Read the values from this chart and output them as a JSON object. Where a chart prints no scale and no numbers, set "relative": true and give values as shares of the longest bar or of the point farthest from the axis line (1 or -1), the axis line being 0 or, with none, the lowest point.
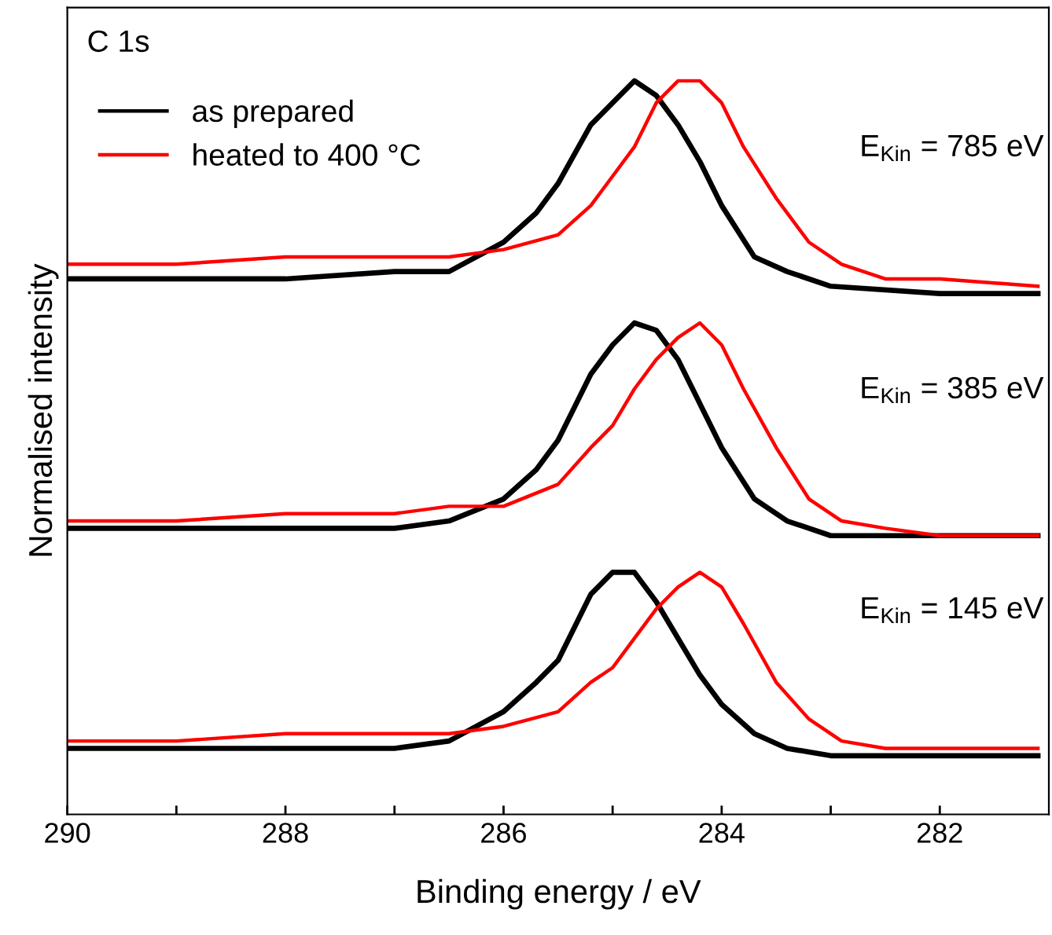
{
  "chart_data": {
    "type": "line",
    "relative": true,
    "xlabel": "Binding energy / eV",
    "ylabel": "Normalised intensity",
    "xlim": [
      290,
      281
    ],
    "xticks": [
      290,
      {
        "value": 289,
        "label": null
      },
      288,
      {
        "value": 287,
        "label": null
      },
      286,
      {
        "value": 285,
        "label": null
      },
      284,
      {
        "value": 283,
        "label": null
      },
      282
    ],
    "tick_labels": "x",
    "grid": false,
    "legend": "top left",
    "line_style": "solid",
    "marker": "none",
    "annotations": [
      "C 1s",
      "E$_{Kin}$ = 785 eV",
      "E$_{Kin}$ = 385 eV",
      "E$_{Kin}$ = 145 eV"
    ],
    "series": [
      {
        "name": "as prepared",
        "color": "#000000",
        "x": [
          290,
          289,
          288,
          287,
          286.5,
          286,
          285.7,
          285.5,
          285.2,
          285,
          284.8,
          284.6,
          284.4,
          284.2,
          284,
          283.7,
          283.4,
          283,
          282,
          281.1
        ],
        "values": [
          0.73,
          0.73,
          0.73,
          0.74,
          0.74,
          0.78,
          0.82,
          0.86,
          0.94,
          0.97,
          1.0,
          0.98,
          0.94,
          0.89,
          0.83,
          0.76,
          0.74,
          0.72,
          0.71,
          0.71
        ]
      },
      {
        "name": "heated to 400 °C",
        "color": "#ff0000",
        "x": [
          290,
          289,
          288,
          287,
          286.5,
          286,
          285.5,
          285.2,
          285,
          284.8,
          284.6,
          284.4,
          284.2,
          284,
          283.8,
          283.5,
          283.2,
          282.9,
          282.5,
          282,
          281.1
        ],
        "values": [
          0.75,
          0.75,
          0.76,
          0.76,
          0.76,
          0.77,
          0.79,
          0.83,
          0.87,
          0.91,
          0.97,
          1.0,
          1.0,
          0.97,
          0.91,
          0.84,
          0.78,
          0.75,
          0.73,
          0.73,
          0.72
        ]
      },
      {
        "color": "#000000",
        "x": [
          290,
          289,
          288,
          287,
          286.5,
          286,
          285.7,
          285.5,
          285.2,
          285,
          284.8,
          284.6,
          284.4,
          284.2,
          284,
          283.7,
          283.4,
          283,
          282,
          281.1
        ],
        "values": [
          0.39,
          0.39,
          0.39,
          0.39,
          0.4,
          0.43,
          0.47,
          0.51,
          0.6,
          0.64,
          0.67,
          0.66,
          0.62,
          0.56,
          0.5,
          0.43,
          0.4,
          0.38,
          0.38,
          0.38
        ]
      },
      {
        "color": "#ff0000",
        "x": [
          290,
          289,
          288,
          287,
          286.5,
          286,
          285.5,
          285.2,
          285,
          284.8,
          284.6,
          284.4,
          284.2,
          284,
          283.8,
          283.5,
          283.2,
          282.9,
          282.5,
          282,
          281.1
        ],
        "values": [
          0.4,
          0.4,
          0.41,
          0.41,
          0.42,
          0.42,
          0.45,
          0.5,
          0.53,
          0.58,
          0.62,
          0.65,
          0.67,
          0.64,
          0.58,
          0.5,
          0.43,
          0.4,
          0.39,
          0.38,
          0.38
        ]
      },
      {
        "color": "#000000",
        "x": [
          290,
          289,
          288,
          287,
          286.5,
          286,
          285.7,
          285.5,
          285.2,
          285,
          284.8,
          284.6,
          284.4,
          284.2,
          284,
          283.7,
          283.4,
          283,
          282,
          281.1
        ],
        "values": [
          0.09,
          0.09,
          0.09,
          0.09,
          0.1,
          0.14,
          0.18,
          0.21,
          0.3,
          0.33,
          0.33,
          0.29,
          0.24,
          0.19,
          0.15,
          0.11,
          0.09,
          0.08,
          0.08,
          0.08
        ]
      },
      {
        "color": "#ff0000",
        "x": [
          290,
          289,
          288,
          287,
          286.5,
          286,
          285.5,
          285.2,
          285,
          284.8,
          284.6,
          284.4,
          284.2,
          284,
          283.8,
          283.5,
          283.2,
          282.9,
          282.5,
          282,
          281.1
        ],
        "values": [
          0.1,
          0.1,
          0.11,
          0.11,
          0.11,
          0.12,
          0.14,
          0.18,
          0.2,
          0.24,
          0.28,
          0.31,
          0.33,
          0.31,
          0.26,
          0.18,
          0.13,
          0.1,
          0.09,
          0.09,
          0.09
        ]
      }
    ]
  }
}
